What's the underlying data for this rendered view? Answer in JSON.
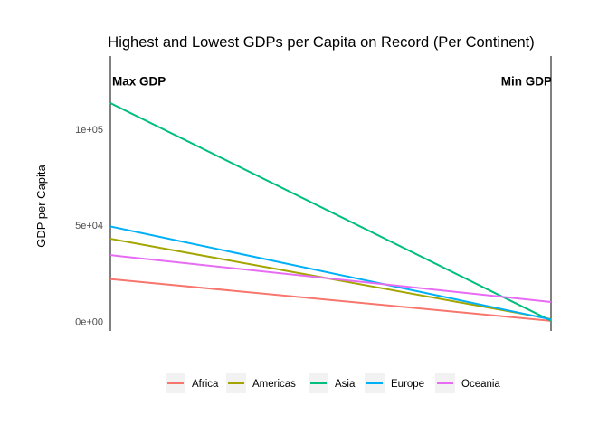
{
  "chart_data": {
    "type": "line",
    "title": "Highest and Lowest GDPs per Capita on Record (Per Continent)",
    "xlabel": "",
    "ylabel": "GDP per Capita",
    "x": [
      "Max GDP",
      "Min GDP"
    ],
    "ylim": [
      -5000,
      138000
    ],
    "yticks": [
      0,
      50000,
      100000
    ],
    "ytick_labels": [
      "0e+00",
      "5e+04",
      "1e+05"
    ],
    "annotations": [
      {
        "text": "Max GDP",
        "x": "Max GDP",
        "y": 125000
      },
      {
        "text": "Min GDP",
        "x": "Min GDP",
        "y": 125000
      }
    ],
    "grid": false,
    "legend_position": "bottom",
    "series": [
      {
        "name": "Africa",
        "values": [
          21951,
          241
        ],
        "color": "#F8766D"
      },
      {
        "name": "Americas",
        "values": [
          42952,
          1202
        ],
        "color": "#A3A500"
      },
      {
        "name": "Asia",
        "values": [
          113523,
          331
        ],
        "color": "#00BF7D"
      },
      {
        "name": "Europe",
        "values": [
          49357,
          974
        ],
        "color": "#00B0F6"
      },
      {
        "name": "Oceania",
        "values": [
          34435,
          10040
        ],
        "color": "#E76BF3"
      }
    ]
  }
}
